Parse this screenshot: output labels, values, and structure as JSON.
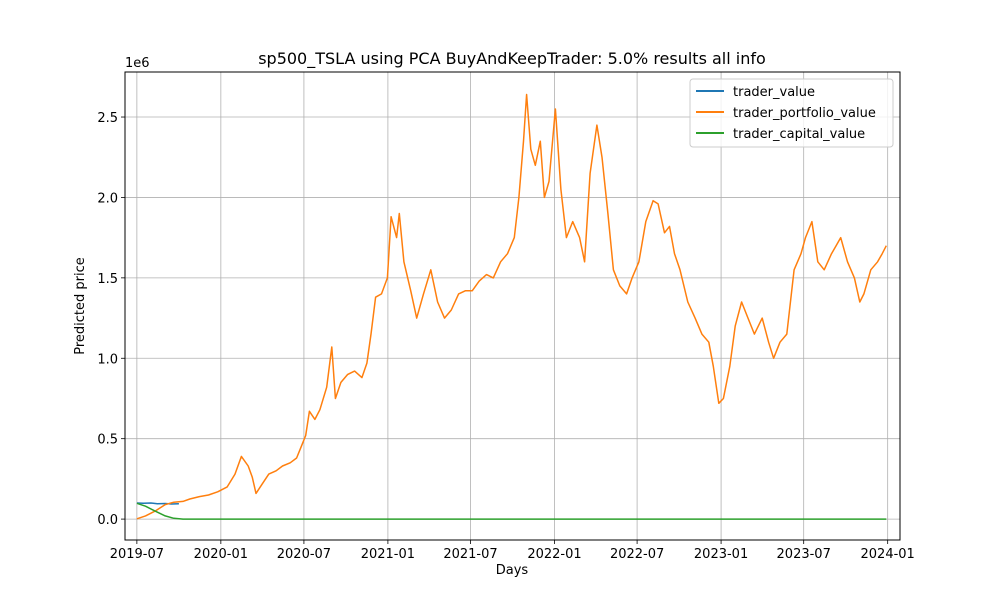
{
  "chart_data": {
    "type": "line",
    "title": "sp500_TSLA using PCA BuyAndKeepTrader: 5.0% results all info",
    "xlabel": "Days",
    "ylabel": "Predicted price",
    "y_offset_label": "1e6",
    "xlim": [
      "2019-06-05",
      "2024-01-28"
    ],
    "ylim": [
      -0.13,
      2.78
    ],
    "y_scale": 1000000,
    "x_ticks": [
      "2019-07",
      "2020-01",
      "2020-07",
      "2021-01",
      "2021-07",
      "2022-01",
      "2022-07",
      "2023-01",
      "2023-07",
      "2024-01"
    ],
    "y_ticks": [
      "0.0",
      "0.5",
      "1.0",
      "1.5",
      "2.0",
      "2.5"
    ],
    "grid": true,
    "legend_position": "top-right",
    "series": [
      {
        "name": "trader_value",
        "color": "#1f77b4",
        "x": [
          "2019-07-01",
          "2019-07-15",
          "2019-08-01",
          "2019-08-15",
          "2019-09-01",
          "2019-09-15",
          "2019-10-01"
        ],
        "values": [
          0.1,
          0.098,
          0.1,
          0.096,
          0.097,
          0.094,
          0.096
        ]
      },
      {
        "name": "trader_portfolio_value",
        "color": "#ff7f0e",
        "x": [
          "2019-07-01",
          "2019-07-20",
          "2019-08-10",
          "2019-09-01",
          "2019-09-20",
          "2019-10-10",
          "2019-10-25",
          "2019-11-15",
          "2019-12-05",
          "2019-12-25",
          "2020-01-15",
          "2020-02-01",
          "2020-02-15",
          "2020-03-01",
          "2020-03-10",
          "2020-03-18",
          "2020-04-01",
          "2020-04-15",
          "2020-05-01",
          "2020-05-15",
          "2020-06-01",
          "2020-06-15",
          "2020-06-25",
          "2020-07-05",
          "2020-07-13",
          "2020-07-25",
          "2020-08-05",
          "2020-08-20",
          "2020-08-31",
          "2020-09-08",
          "2020-09-20",
          "2020-10-05",
          "2020-10-20",
          "2020-11-05",
          "2020-11-16",
          "2020-11-25",
          "2020-12-05",
          "2020-12-18",
          "2020-12-31",
          "2021-01-08",
          "2021-01-20",
          "2021-01-26",
          "2021-02-05",
          "2021-02-20",
          "2021-03-05",
          "2021-03-20",
          "2021-04-05",
          "2021-04-20",
          "2021-05-05",
          "2021-05-20",
          "2021-06-05",
          "2021-06-20",
          "2021-07-05",
          "2021-07-20",
          "2021-08-05",
          "2021-08-20",
          "2021-09-05",
          "2021-09-20",
          "2021-10-05",
          "2021-10-15",
          "2021-10-25",
          "2021-11-01",
          "2021-11-10",
          "2021-11-20",
          "2021-12-01",
          "2021-12-10",
          "2021-12-20",
          "2022-01-03",
          "2022-01-15",
          "2022-01-27",
          "2022-02-10",
          "2022-02-25",
          "2022-03-08",
          "2022-03-20",
          "2022-04-04",
          "2022-04-15",
          "2022-04-28",
          "2022-05-10",
          "2022-05-24",
          "2022-06-08",
          "2022-06-20",
          "2022-07-05",
          "2022-07-20",
          "2022-08-05",
          "2022-08-16",
          "2022-08-30",
          "2022-09-10",
          "2022-09-21",
          "2022-10-03",
          "2022-10-20",
          "2022-11-05",
          "2022-11-20",
          "2022-12-05",
          "2022-12-15",
          "2022-12-27",
          "2023-01-06",
          "2023-01-20",
          "2023-02-01",
          "2023-02-15",
          "2023-03-01",
          "2023-03-15",
          "2023-04-01",
          "2023-04-15",
          "2023-04-26",
          "2023-05-10",
          "2023-05-25",
          "2023-06-10",
          "2023-06-25",
          "2023-07-05",
          "2023-07-19",
          "2023-08-01",
          "2023-08-15",
          "2023-08-31",
          "2023-09-10",
          "2023-09-20",
          "2023-10-05",
          "2023-10-20",
          "2023-11-01",
          "2023-11-10",
          "2023-11-25",
          "2023-12-10",
          "2023-12-20",
          "2023-12-29"
        ],
        "values": [
          0.002,
          0.02,
          0.05,
          0.09,
          0.105,
          0.11,
          0.125,
          0.14,
          0.15,
          0.17,
          0.2,
          0.28,
          0.39,
          0.33,
          0.26,
          0.16,
          0.22,
          0.28,
          0.3,
          0.33,
          0.35,
          0.38,
          0.45,
          0.52,
          0.67,
          0.62,
          0.68,
          0.82,
          1.07,
          0.75,
          0.85,
          0.9,
          0.92,
          0.88,
          0.97,
          1.15,
          1.38,
          1.4,
          1.5,
          1.88,
          1.75,
          1.9,
          1.6,
          1.42,
          1.25,
          1.4,
          1.55,
          1.35,
          1.25,
          1.3,
          1.4,
          1.42,
          1.42,
          1.48,
          1.52,
          1.5,
          1.6,
          1.65,
          1.75,
          2.0,
          2.35,
          2.64,
          2.3,
          2.2,
          2.35,
          2.0,
          2.1,
          2.55,
          2.05,
          1.75,
          1.85,
          1.75,
          1.6,
          2.15,
          2.45,
          2.25,
          1.9,
          1.55,
          1.45,
          1.4,
          1.5,
          1.6,
          1.85,
          1.98,
          1.96,
          1.78,
          1.82,
          1.65,
          1.55,
          1.35,
          1.25,
          1.15,
          1.1,
          0.95,
          0.72,
          0.75,
          0.95,
          1.2,
          1.35,
          1.25,
          1.15,
          1.25,
          1.1,
          1.0,
          1.1,
          1.15,
          1.55,
          1.65,
          1.75,
          1.85,
          1.6,
          1.55,
          1.65,
          1.7,
          1.75,
          1.6,
          1.5,
          1.35,
          1.4,
          1.55,
          1.6,
          1.65,
          1.7
        ]
      },
      {
        "name": "trader_capital_value",
        "color": "#2ca02c",
        "x": [
          "2019-07-01",
          "2019-07-20",
          "2019-08-10",
          "2019-09-01",
          "2019-09-20",
          "2019-10-10",
          "2020-06-01",
          "2021-06-01",
          "2022-06-01",
          "2023-06-01",
          "2023-12-29"
        ],
        "values": [
          0.098,
          0.08,
          0.05,
          0.02,
          0.005,
          0.0,
          0.0,
          0.0,
          0.0,
          0.0,
          0.0
        ]
      }
    ]
  }
}
